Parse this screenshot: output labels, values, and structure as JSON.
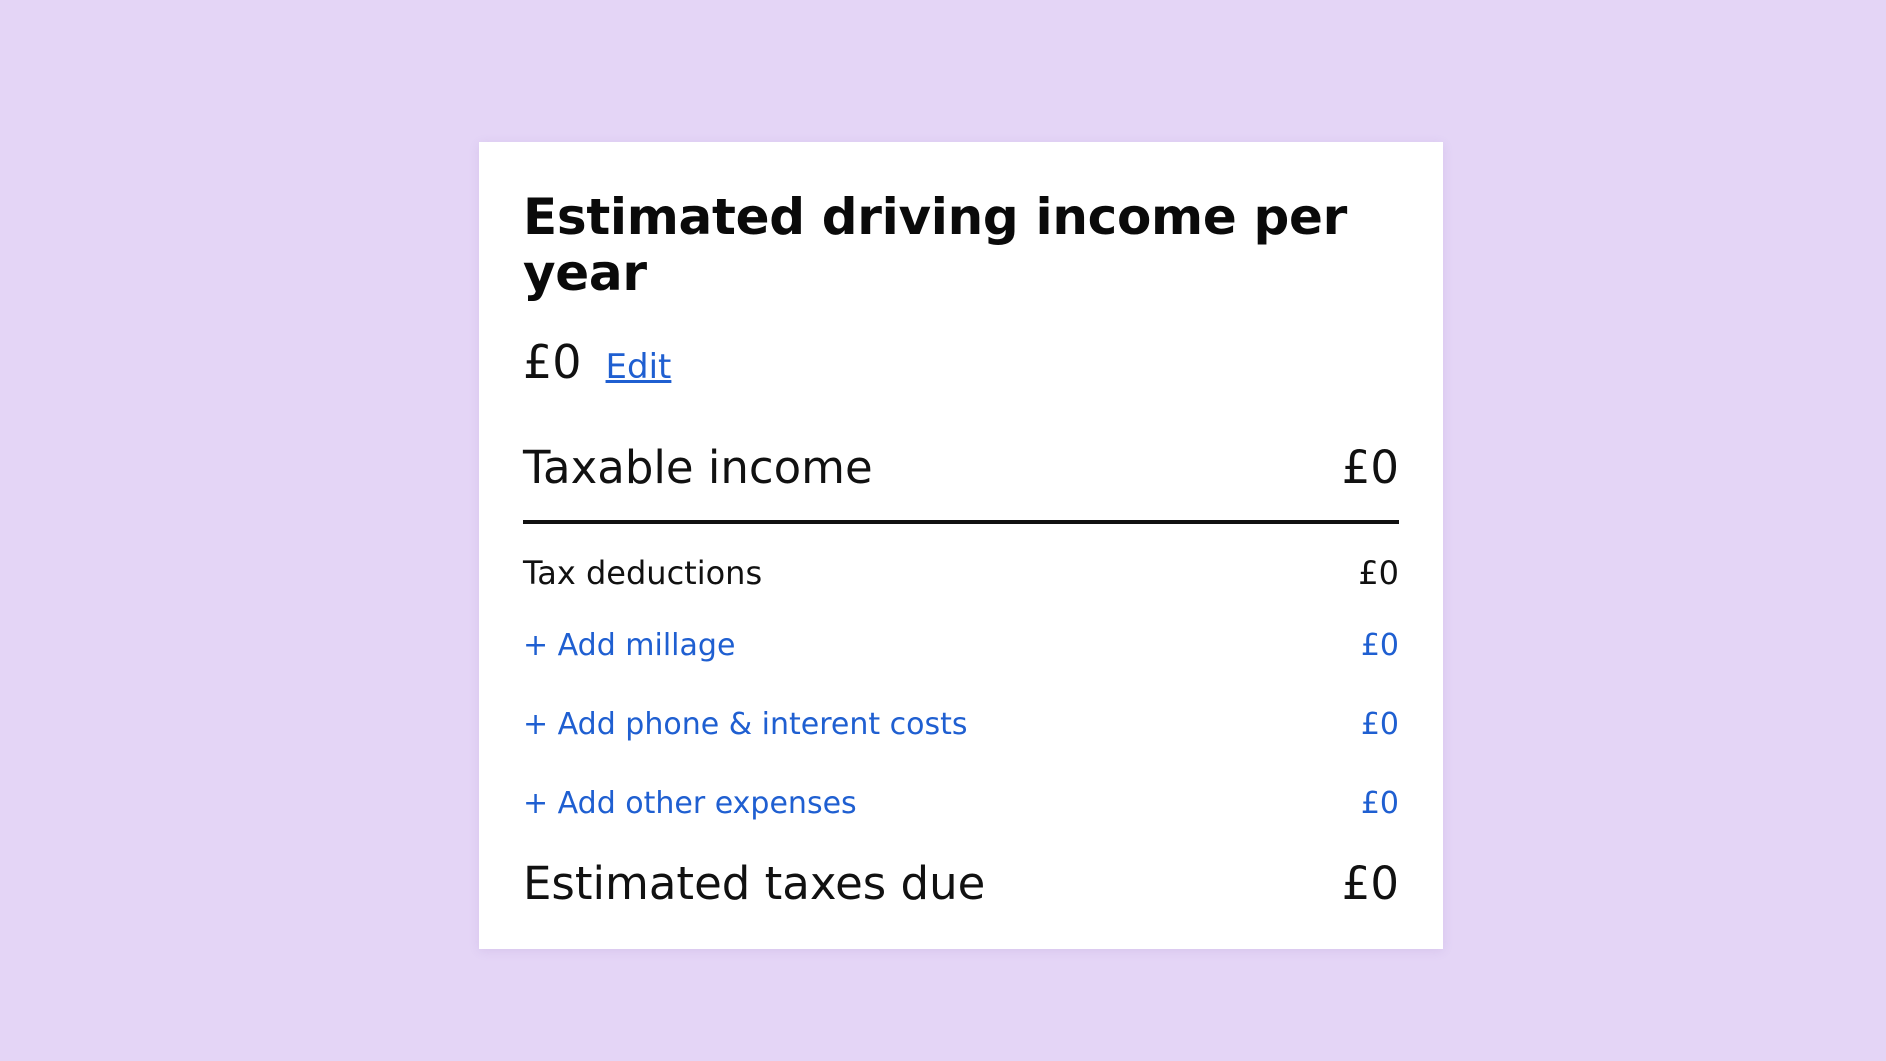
{
  "card": {
    "title": "Estimated driving income per year",
    "income_value": "£0",
    "edit_label": "Edit"
  },
  "taxable_income": {
    "label": "Taxable income",
    "value": "£0"
  },
  "tax_deductions": {
    "label": "Tax deductions",
    "value": "£0"
  },
  "deduction_links": [
    {
      "label": "+ Add millage",
      "value": "£0"
    },
    {
      "label": "+ Add phone & interent costs",
      "value": "£0"
    },
    {
      "label": "+ Add other expenses",
      "value": "£0"
    }
  ],
  "estimated_taxes": {
    "label": "Estimated taxes due",
    "value": "£0"
  },
  "colors": {
    "background": "#e4d5f6",
    "card": "#ffffff",
    "link": "#1f5fd1",
    "text": "#111111"
  }
}
